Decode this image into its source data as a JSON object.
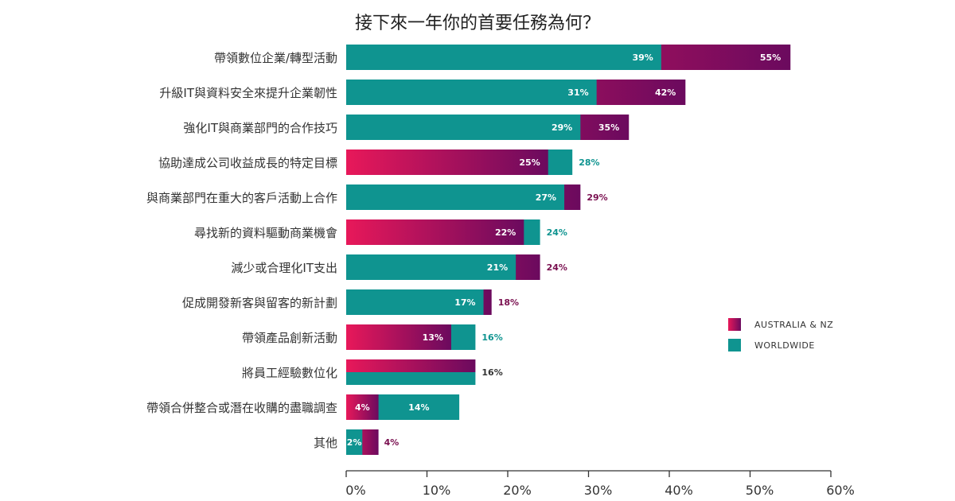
{
  "chart_data": {
    "type": "bar",
    "orientation": "horizontal",
    "title": "接下來一年你的首要任務為何？",
    "categories": [
      "帶領數位企業/轉型活動",
      "升級IT與資料安全來提升企業韌性",
      "強化IT與商業部門的合作技巧",
      "協助達成公司收益成長的特定目標",
      "與商業部門在重大的客戶活動上合作",
      "尋找新的資料驅動商業機會",
      "減少或合理化IT支出",
      "促成開發新客與留客的新計劃",
      "帶領產品創新活動",
      "將員工經驗數位化",
      "帶領合併整合或潛在收購的盡職調查",
      "其他"
    ],
    "series": [
      {
        "name": "AUSTRALIA & NZ",
        "values": [
          55,
          42,
          35,
          25,
          29,
          22,
          24,
          18,
          13,
          16,
          4,
          4
        ]
      },
      {
        "name": "WORLDWIDE",
        "values": [
          39,
          31,
          29,
          28,
          27,
          24,
          21,
          17,
          16,
          16,
          14,
          2
        ]
      }
    ],
    "bar_labels": [
      {
        "au": "55%",
        "ww": "39%"
      },
      {
        "au": "42%",
        "ww": "31%"
      },
      {
        "au": "35%",
        "ww": "29%"
      },
      {
        "au": "25%",
        "ww": "28%"
      },
      {
        "au": "29%",
        "ww": "27%"
      },
      {
        "au": "22%",
        "ww": "24%"
      },
      {
        "au": "24%",
        "ww": "21%"
      },
      {
        "au": "18%",
        "ww": "17%"
      },
      {
        "au": "13%",
        "ww": "16%"
      },
      {
        "au": "",
        "ww": "16%"
      },
      {
        "au": "4%",
        "ww": "14%"
      },
      {
        "au": "4%",
        "ww": "2%"
      }
    ],
    "x_ticks": [
      "0%",
      "10%",
      "20%",
      "30%",
      "40%",
      "50%",
      "60%"
    ],
    "xlim": [
      0,
      60
    ],
    "legend_position": "right",
    "colors": {
      "australia_nz_start": "#e8185a",
      "australia_nz_end": "#6b0a5e",
      "worldwide": "#0f9490",
      "au_outside_label": "#7a1050",
      "ww_outside_label": "#0f9490",
      "neutral_label": "#333333"
    }
  }
}
